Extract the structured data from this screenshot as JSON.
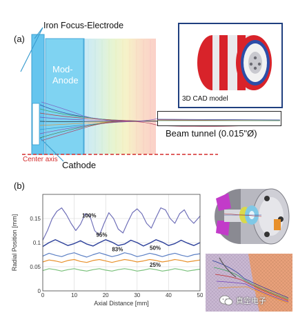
{
  "panel_a": {
    "label": "(a)",
    "labels": {
      "focus_electrode": "Iron Focus-Electrode",
      "mod_anode": "Mod-\nAnode",
      "cad_model": "3D CAD model",
      "beam_tunnel": "Beam tunnel (0.015\"Ø)",
      "center_axis": "Center axis",
      "cathode": "Cathode"
    },
    "colors": {
      "electrode_fill": "#66c5ee",
      "anode_fill": "#7fd3f2",
      "cad_border": "#1f3f7f",
      "center_axis": "#d32a2a",
      "cad_red": "#d8232a",
      "cad_blue": "#2c4ea8"
    }
  },
  "panel_b": {
    "label": "(b)",
    "chart_data": {
      "type": "line",
      "xlabel": "Axial Distance [mm]",
      "ylabel": "Radial Position [mm]",
      "xlim": [
        0,
        50
      ],
      "ylim": [
        0,
        0.2
      ],
      "xticks": [
        "0",
        "10",
        "20",
        "30",
        "40",
        "50"
      ],
      "yticks": [
        "0",
        "0.05",
        "0.1",
        "0.15"
      ],
      "grid": true,
      "series": [
        {
          "name": "100%",
          "color": "#6f6fb8",
          "width": 1.2,
          "x": [
            0,
            1.5,
            3,
            4.5,
            6,
            7.5,
            9,
            10.5,
            12,
            13.5,
            15,
            16.5,
            18,
            19.5,
            21,
            22.5,
            24,
            25.5,
            27,
            28.5,
            30,
            31.5,
            33,
            34.5,
            36,
            37.5,
            39,
            40.5,
            42,
            43.5,
            45,
            46.5,
            48,
            50
          ],
          "y": [
            0.105,
            0.125,
            0.15,
            0.165,
            0.172,
            0.158,
            0.14,
            0.125,
            0.138,
            0.16,
            0.155,
            0.125,
            0.115,
            0.14,
            0.162,
            0.15,
            0.128,
            0.12,
            0.142,
            0.162,
            0.17,
            0.16,
            0.14,
            0.13,
            0.152,
            0.172,
            0.168,
            0.15,
            0.14,
            0.16,
            0.168,
            0.15,
            0.14,
            0.155
          ]
        },
        {
          "name": "95%",
          "color": "#2b3f9a",
          "width": 1.4,
          "x": [
            0,
            2,
            4,
            6,
            8,
            10,
            12,
            14,
            16,
            18,
            20,
            22,
            24,
            26,
            28,
            30,
            32,
            34,
            36,
            38,
            40,
            42,
            44,
            46,
            48,
            50
          ],
          "y": [
            0.092,
            0.1,
            0.106,
            0.1,
            0.094,
            0.098,
            0.104,
            0.097,
            0.093,
            0.1,
            0.106,
            0.101,
            0.094,
            0.097,
            0.105,
            0.1,
            0.093,
            0.099,
            0.106,
            0.101,
            0.094,
            0.098,
            0.105,
            0.099,
            0.094,
            0.1
          ]
        },
        {
          "name": "83%",
          "color": "#5b7fc4",
          "width": 1.2,
          "x": [
            0,
            2,
            4,
            6,
            8,
            10,
            12,
            14,
            16,
            18,
            20,
            22,
            24,
            26,
            28,
            30,
            32,
            34,
            36,
            38,
            40,
            42,
            44,
            46,
            48,
            50
          ],
          "y": [
            0.072,
            0.078,
            0.074,
            0.071,
            0.076,
            0.079,
            0.074,
            0.07,
            0.075,
            0.079,
            0.075,
            0.071,
            0.074,
            0.079,
            0.076,
            0.071,
            0.074,
            0.078,
            0.075,
            0.071,
            0.075,
            0.078,
            0.074,
            0.071,
            0.075,
            0.077
          ]
        },
        {
          "name": "50%",
          "color": "#e8902a",
          "width": 1.2,
          "x": [
            0,
            2,
            4,
            6,
            8,
            10,
            12,
            14,
            16,
            18,
            20,
            22,
            24,
            26,
            28,
            30,
            32,
            34,
            36,
            38,
            40,
            42,
            44,
            46,
            48,
            50
          ],
          "y": [
            0.06,
            0.064,
            0.062,
            0.059,
            0.063,
            0.065,
            0.061,
            0.059,
            0.063,
            0.065,
            0.062,
            0.059,
            0.062,
            0.065,
            0.063,
            0.06,
            0.062,
            0.065,
            0.063,
            0.06,
            0.062,
            0.065,
            0.063,
            0.06,
            0.062,
            0.064
          ]
        },
        {
          "name": "25%",
          "color": "#79c07a",
          "width": 1.2,
          "x": [
            0,
            2,
            4,
            6,
            8,
            10,
            12,
            14,
            16,
            18,
            20,
            22,
            24,
            26,
            28,
            30,
            32,
            34,
            36,
            38,
            40,
            42,
            44,
            46,
            48,
            50
          ],
          "y": [
            0.042,
            0.046,
            0.044,
            0.041,
            0.044,
            0.046,
            0.043,
            0.041,
            0.044,
            0.046,
            0.043,
            0.041,
            0.044,
            0.046,
            0.044,
            0.041,
            0.043,
            0.046,
            0.044,
            0.041,
            0.043,
            0.046,
            0.044,
            0.041,
            0.043,
            0.045
          ]
        }
      ],
      "annotations": [
        {
          "text": "100%",
          "x": 12.5,
          "y": 0.152
        },
        {
          "text": "95%",
          "x": 17,
          "y": 0.112
        },
        {
          "text": "83%",
          "x": 22,
          "y": 0.082
        },
        {
          "text": "50%",
          "x": 34,
          "y": 0.085
        },
        {
          "text": "25%",
          "x": 34,
          "y": 0.05
        }
      ]
    }
  },
  "watermark": {
    "text": "真空电子",
    "icon": "wechat-icon"
  }
}
